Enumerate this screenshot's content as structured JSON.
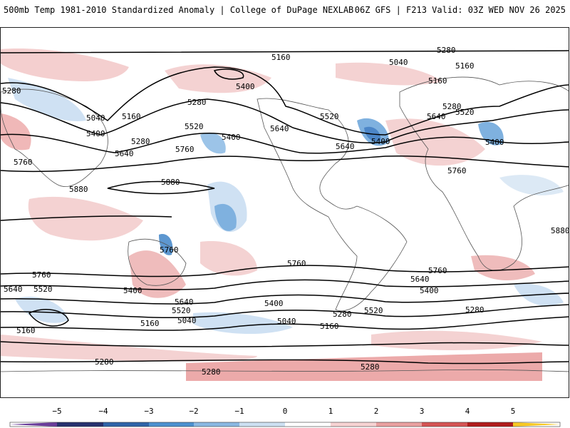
{
  "header": {
    "title": "500mb Temp 1981-2010 Standardized Anomaly | College of DuPage NEXLAB",
    "run_info": "06Z GFS | F213 Valid: 03Z WED NOV 26 2025"
  },
  "contours": {
    "height_labels": [
      "5160",
      "5040",
      "5160",
      "5280",
      "5280",
      "5400",
      "5520",
      "5160",
      "5040",
      "5400",
      "5280",
      "5160",
      "5280",
      "5520",
      "5640",
      "5640",
      "5400",
      "5760",
      "5760",
      "5880",
      "5880",
      "5400",
      "5280",
      "5640",
      "5400",
      "5520",
      "5640",
      "5760",
      "5280",
      "5040",
      "5280",
      "5160",
      "5280",
      "5280",
      "5760",
      "5880",
      "5640",
      "5400",
      "5520",
      "5040",
      "5160",
      "5160",
      "5520",
      "5280",
      "5640",
      "5760",
      "5400",
      "5520",
      "5400",
      "5640",
      "5760",
      "5760"
    ],
    "label_color": "#000000"
  },
  "colorbar": {
    "ticks": [
      "−5",
      "−4",
      "−3",
      "−2",
      "−1",
      "0",
      "1",
      "2",
      "3",
      "4",
      "5"
    ],
    "colors": [
      "#6a3d9a",
      "#27316e",
      "#2f64a8",
      "#4c91d0",
      "#8ab8e2",
      "#cde0f2",
      "#ffffff",
      "#f7d3d3",
      "#e9a0a0",
      "#d55454",
      "#b01c1c",
      "#7a0c0c",
      "#f7c823"
    ]
  }
}
